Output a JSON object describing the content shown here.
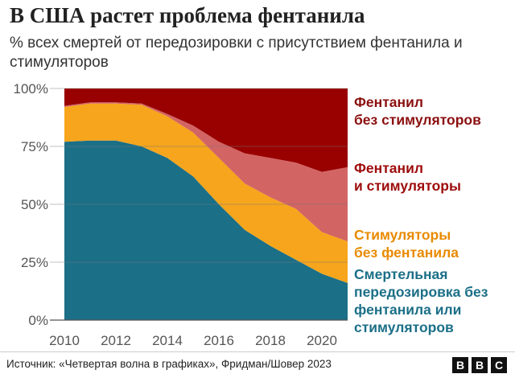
{
  "header": {
    "title": "В США растет проблема фентанила",
    "subtitle": "% всех смертей от передозировки с присутствием фентанила и стимуляторов"
  },
  "chart_data": {
    "type": "area",
    "stacked": true,
    "x": [
      2010,
      2011,
      2012,
      2013,
      2014,
      2015,
      2016,
      2017,
      2018,
      2019,
      2020,
      2021
    ],
    "xticks": [
      "2010",
      "2012",
      "2014",
      "2016",
      "2018",
      "2020"
    ],
    "xtick_values": [
      2010,
      2012,
      2014,
      2016,
      2018,
      2020
    ],
    "ylim": [
      0,
      100
    ],
    "yticks": [
      "0%",
      "25%",
      "50%",
      "75%",
      "100%"
    ],
    "ytick_values": [
      0,
      25,
      50,
      75,
      100
    ],
    "series": [
      {
        "name": "Смертельная передозировка без фентанила или стимуляторов",
        "lines": [
          "Смертельная",
          "передозировка без",
          "фентанила или",
          "стимуляторов"
        ],
        "color": "#1b6f87",
        "values": [
          77,
          77.5,
          77.5,
          75,
          70,
          62,
          50,
          39,
          32,
          26,
          20,
          16
        ]
      },
      {
        "name": "Стимуляторы без фентанила",
        "lines": [
          "Стимуляторы",
          "без фентанила"
        ],
        "color": "#f6a51c",
        "values": [
          15,
          16,
          16,
          18,
          18,
          19,
          20,
          20,
          21,
          22,
          18,
          18
        ]
      },
      {
        "name": "Фентанил и стимуляторы",
        "lines": [
          "Фентанил",
          "и стимуляторы"
        ],
        "color": "#d36464",
        "values": [
          0.5,
          0.5,
          0.5,
          0.5,
          1,
          3,
          7,
          13,
          17,
          20,
          26,
          32
        ]
      },
      {
        "name": "Фентанил без стимуляторов",
        "lines": [
          "Фентанил",
          "без стимуляторов"
        ],
        "color": "#990000",
        "values": [
          7.5,
          6,
          6,
          6.5,
          11,
          16,
          23,
          28,
          30,
          32,
          36,
          34
        ]
      }
    ]
  },
  "footer": {
    "source": "Источник: «Четвертая волна в графиках», Фридман/Шовер 2023",
    "logo_letters": [
      "B",
      "B",
      "C"
    ]
  }
}
